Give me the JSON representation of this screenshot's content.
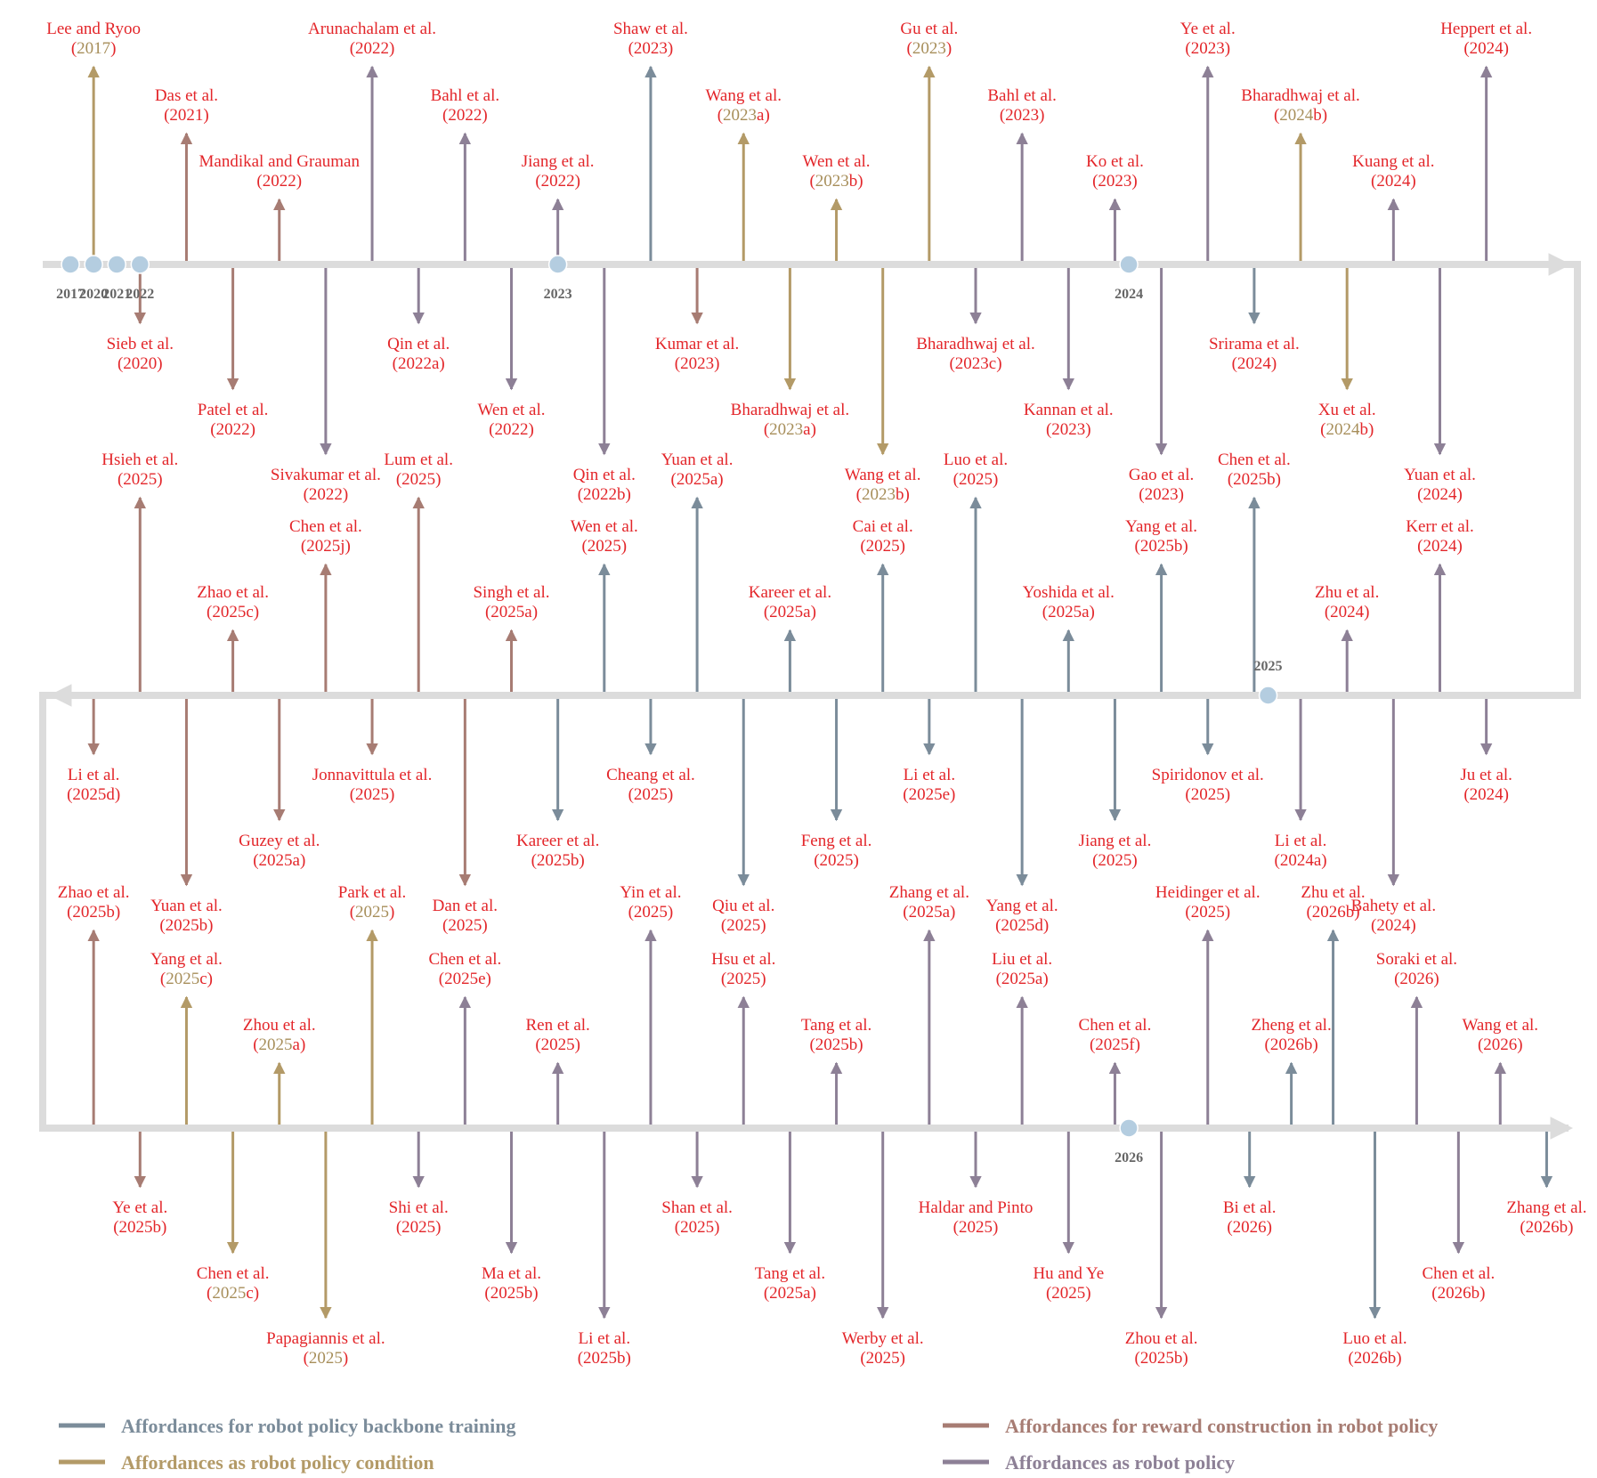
{
  "colors": {
    "track": "#dcdcdc",
    "marker": "#b4cde0",
    "text": "#e3262a",
    "year_letter_tan": "#a78e5a",
    "backbone": "#7b8c9a",
    "condition": "#b39a67",
    "reward": "#a77c73",
    "policy": "#8d8096"
  },
  "legend": [
    {
      "cat": "backbone",
      "label": "Affordances for robot policy backbone training"
    },
    {
      "cat": "reward",
      "label": "Affordances for reward construction in robot policy"
    },
    {
      "cat": "condition",
      "label": "Affordances as robot policy condition"
    },
    {
      "cat": "policy",
      "label": "Affordances as robot policy"
    }
  ],
  "year_markers": [
    {
      "label": "2017",
      "row": 0,
      "col": 0.5
    },
    {
      "label": "2020",
      "row": 0,
      "col": 1
    },
    {
      "label": "2021",
      "row": 0,
      "col": 1.5
    },
    {
      "label": "2022",
      "row": 0,
      "col": 2
    },
    {
      "label": "2023",
      "row": 0,
      "col": 11
    },
    {
      "label": "2024",
      "row": 0,
      "col": 23.3
    },
    {
      "label": "2025",
      "row": 1,
      "col": 26.3
    },
    {
      "label": "2026",
      "row": 2,
      "col": 23.3
    }
  ],
  "entries": [
    {
      "row": 0,
      "col": 1,
      "side": "up",
      "tier": 1,
      "cat": "condition",
      "author": "Lee and Ryoo",
      "year": "(2017)"
    },
    {
      "row": 0,
      "col": 2,
      "side": "down",
      "tier": 1,
      "cat": "reward",
      "author": "Sieb et al.",
      "year": "(2020)"
    },
    {
      "row": 0,
      "col": 3,
      "side": "up",
      "tier": 2,
      "cat": "reward",
      "author": "Das et al.",
      "year": "(2021)"
    },
    {
      "row": 0,
      "col": 4,
      "side": "down",
      "tier": 2,
      "cat": "reward",
      "author": "Patel et al.",
      "year": "(2022)"
    },
    {
      "row": 0,
      "col": 5,
      "side": "up",
      "tier": 3,
      "cat": "reward",
      "author": "Mandikal and Grauman",
      "year": "(2022)"
    },
    {
      "row": 0,
      "col": 6,
      "side": "down",
      "tier": 3,
      "cat": "policy",
      "author": "Sivakumar et al.",
      "year": "(2022)"
    },
    {
      "row": 0,
      "col": 7,
      "side": "up",
      "tier": 1,
      "cat": "policy",
      "author": "Arunachalam et al.",
      "year": "(2022)"
    },
    {
      "row": 0,
      "col": 8,
      "side": "down",
      "tier": 1,
      "cat": "policy",
      "author": "Qin et al.",
      "year": "(2022a)"
    },
    {
      "row": 0,
      "col": 9,
      "side": "up",
      "tier": 2,
      "cat": "policy",
      "author": "Bahl et al.",
      "year": "(2022)"
    },
    {
      "row": 0,
      "col": 10,
      "side": "down",
      "tier": 2,
      "cat": "policy",
      "author": "Wen et al.",
      "year": "(2022)"
    },
    {
      "row": 0,
      "col": 11,
      "side": "up",
      "tier": 3,
      "cat": "policy",
      "author": "Jiang et al.",
      "year": "(2022)"
    },
    {
      "row": 0,
      "col": 12,
      "side": "down",
      "tier": 3,
      "cat": "policy",
      "author": "Qin et al.",
      "year": "(2022b)"
    },
    {
      "row": 0,
      "col": 13,
      "side": "up",
      "tier": 1,
      "cat": "backbone",
      "author": "Shaw et al.",
      "year": "(2023)"
    },
    {
      "row": 0,
      "col": 14,
      "side": "down",
      "tier": 1,
      "cat": "reward",
      "author": "Kumar et al.",
      "year": "(2023)"
    },
    {
      "row": 0,
      "col": 15,
      "side": "up",
      "tier": 2,
      "cat": "condition",
      "author": "Wang et al.",
      "year": "(2023a)"
    },
    {
      "row": 0,
      "col": 16,
      "side": "down",
      "tier": 2,
      "cat": "condition",
      "author": "Bharadhwaj et al.",
      "year": "(2023a)"
    },
    {
      "row": 0,
      "col": 17,
      "side": "up",
      "tier": 3,
      "cat": "condition",
      "author": "Wen et al.",
      "year": "(2023b)"
    },
    {
      "row": 0,
      "col": 18,
      "side": "down",
      "tier": 3,
      "cat": "condition",
      "author": "Wang et al.",
      "year": "(2023b)"
    },
    {
      "row": 0,
      "col": 19,
      "side": "up",
      "tier": 1,
      "cat": "condition",
      "author": "Gu et al.",
      "year": "(2023)"
    },
    {
      "row": 0,
      "col": 20,
      "side": "down",
      "tier": 1,
      "cat": "policy",
      "author": "Bharadhwaj et al.",
      "year": "(2023c)"
    },
    {
      "row": 0,
      "col": 21,
      "side": "up",
      "tier": 2,
      "cat": "policy",
      "author": "Bahl et al.",
      "year": "(2023)"
    },
    {
      "row": 0,
      "col": 22,
      "side": "down",
      "tier": 2,
      "cat": "policy",
      "author": "Kannan et al.",
      "year": "(2023)"
    },
    {
      "row": 0,
      "col": 23,
      "side": "up",
      "tier": 3,
      "cat": "policy",
      "author": "Ko et al.",
      "year": "(2023)"
    },
    {
      "row": 0,
      "col": 24,
      "side": "down",
      "tier": 3,
      "cat": "policy",
      "author": "Gao et al.",
      "year": "(2023)"
    },
    {
      "row": 0,
      "col": 25,
      "side": "up",
      "tier": 1,
      "cat": "policy",
      "author": "Ye et al.",
      "year": "(2023)"
    },
    {
      "row": 0,
      "col": 26,
      "side": "down",
      "tier": 1,
      "cat": "backbone",
      "author": "Srirama et al.",
      "year": "(2024)"
    },
    {
      "row": 0,
      "col": 27,
      "side": "up",
      "tier": 2,
      "cat": "condition",
      "author": "Bharadhwaj et al.",
      "year": "(2024b)"
    },
    {
      "row": 0,
      "col": 28,
      "side": "down",
      "tier": 2,
      "cat": "condition",
      "author": "Xu et al.",
      "year": "(2024b)"
    },
    {
      "row": 0,
      "col": 29,
      "side": "up",
      "tier": 3,
      "cat": "policy",
      "author": "Kuang et al.",
      "year": "(2024)"
    },
    {
      "row": 0,
      "col": 30,
      "side": "down",
      "tier": 3,
      "cat": "policy",
      "author": "Yuan et al.",
      "year": "(2024)"
    },
    {
      "row": 0,
      "col": 31,
      "side": "up",
      "tier": 1,
      "cat": "policy",
      "author": "Heppert et al.",
      "year": "(2024)"
    },
    {
      "row": 1,
      "col": 31,
      "side": "down",
      "tier": 1,
      "cat": "policy",
      "author": "Ju et al.",
      "year": "(2024)"
    },
    {
      "row": 1,
      "col": 30,
      "side": "up",
      "tier": 2,
      "cat": "policy",
      "author": "Kerr et al.",
      "year": "(2024)"
    },
    {
      "row": 1,
      "col": 29,
      "side": "down",
      "tier": 3,
      "cat": "policy",
      "author": "Bahety et al.",
      "year": "(2024)"
    },
    {
      "row": 1,
      "col": 28,
      "side": "up",
      "tier": 3,
      "cat": "policy",
      "author": "Zhu et al.",
      "year": "(2024)"
    },
    {
      "row": 1,
      "col": 27,
      "side": "down",
      "tier": 2,
      "cat": "policy",
      "author": "Li et al.",
      "year": "(2024a)"
    },
    {
      "row": 1,
      "col": 26,
      "side": "up",
      "tier": 1,
      "cat": "backbone",
      "author": "Chen et al.",
      "year": "(2025b)"
    },
    {
      "row": 1,
      "col": 25,
      "side": "down",
      "tier": 1,
      "cat": "backbone",
      "author": "Spiridonov et al.",
      "year": "(2025)"
    },
    {
      "row": 1,
      "col": 24,
      "side": "up",
      "tier": 2,
      "cat": "backbone",
      "author": "Yang et al.",
      "year": "(2025b)"
    },
    {
      "row": 1,
      "col": 23,
      "side": "down",
      "tier": 2,
      "cat": "backbone",
      "author": "Jiang et al.",
      "year": "(2025)"
    },
    {
      "row": 1,
      "col": 22,
      "side": "up",
      "tier": 3,
      "cat": "backbone",
      "author": "Yoshida et al.",
      "year": "(2025a)"
    },
    {
      "row": 1,
      "col": 21,
      "side": "down",
      "tier": 3,
      "cat": "backbone",
      "author": "Yang et al.",
      "year": "(2025d)"
    },
    {
      "row": 1,
      "col": 20,
      "side": "up",
      "tier": 1,
      "cat": "backbone",
      "author": "Luo et al.",
      "year": "(2025)"
    },
    {
      "row": 1,
      "col": 19,
      "side": "down",
      "tier": 1,
      "cat": "backbone",
      "author": "Li et al.",
      "year": "(2025e)"
    },
    {
      "row": 1,
      "col": 18,
      "side": "up",
      "tier": 2,
      "cat": "backbone",
      "author": "Cai et al.",
      "year": "(2025)"
    },
    {
      "row": 1,
      "col": 17,
      "side": "down",
      "tier": 2,
      "cat": "backbone",
      "author": "Feng et al.",
      "year": "(2025)"
    },
    {
      "row": 1,
      "col": 16,
      "side": "up",
      "tier": 3,
      "cat": "backbone",
      "author": "Kareer et al.",
      "year": "(2025a)"
    },
    {
      "row": 1,
      "col": 15,
      "side": "down",
      "tier": 3,
      "cat": "backbone",
      "author": "Qiu et al.",
      "year": "(2025)"
    },
    {
      "row": 1,
      "col": 14,
      "side": "up",
      "tier": 1,
      "cat": "backbone",
      "author": "Yuan et al.",
      "year": "(2025a)"
    },
    {
      "row": 1,
      "col": 13,
      "side": "down",
      "tier": 1,
      "cat": "backbone",
      "author": "Cheang et al.",
      "year": "(2025)"
    },
    {
      "row": 1,
      "col": 12,
      "side": "up",
      "tier": 2,
      "cat": "backbone",
      "author": "Wen et al.",
      "year": "(2025)"
    },
    {
      "row": 1,
      "col": 11,
      "side": "down",
      "tier": 2,
      "cat": "backbone",
      "author": "Kareer et al.",
      "year": "(2025b)"
    },
    {
      "row": 1,
      "col": 10,
      "side": "up",
      "tier": 3,
      "cat": "reward",
      "author": "Singh et al.",
      "year": "(2025a)"
    },
    {
      "row": 1,
      "col": 9,
      "side": "down",
      "tier": 3,
      "cat": "reward",
      "author": "Dan et al.",
      "year": "(2025)"
    },
    {
      "row": 1,
      "col": 8,
      "side": "up",
      "tier": 1,
      "cat": "reward",
      "author": "Lum et al.",
      "year": "(2025)"
    },
    {
      "row": 1,
      "col": 7,
      "side": "down",
      "tier": 1,
      "cat": "reward",
      "author": "Jonnavittula et al.",
      "year": "(2025)"
    },
    {
      "row": 1,
      "col": 6,
      "side": "up",
      "tier": 2,
      "cat": "reward",
      "author": "Chen et al.",
      "year": "(2025j)"
    },
    {
      "row": 1,
      "col": 5,
      "side": "down",
      "tier": 2,
      "cat": "reward",
      "author": "Guzey et al.",
      "year": "(2025a)"
    },
    {
      "row": 1,
      "col": 4,
      "side": "up",
      "tier": 3,
      "cat": "reward",
      "author": "Zhao et al.",
      "year": "(2025c)"
    },
    {
      "row": 1,
      "col": 3,
      "side": "down",
      "tier": 3,
      "cat": "reward",
      "author": "Yuan et al.",
      "year": "(2025b)"
    },
    {
      "row": 1,
      "col": 2,
      "side": "up",
      "tier": 1,
      "cat": "reward",
      "author": "Hsieh et al.",
      "year": "(2025)"
    },
    {
      "row": 1,
      "col": 1,
      "side": "down",
      "tier": 1,
      "cat": "reward",
      "author": "Li et al.",
      "year": "(2025d)"
    },
    {
      "row": 2,
      "col": 1,
      "side": "up",
      "tier": 1,
      "cat": "reward",
      "author": "Zhao et al.",
      "year": "(2025b)"
    },
    {
      "row": 2,
      "col": 2,
      "side": "down",
      "tier": 1,
      "cat": "reward",
      "author": "Ye et al.",
      "year": "(2025b)"
    },
    {
      "row": 2,
      "col": 3,
      "side": "up",
      "tier": 2,
      "cat": "condition",
      "author": "Yang et al.",
      "year": "(2025c)"
    },
    {
      "row": 2,
      "col": 4,
      "side": "down",
      "tier": 2,
      "cat": "condition",
      "author": "Chen et al.",
      "year": "(2025c)"
    },
    {
      "row": 2,
      "col": 5,
      "side": "up",
      "tier": 3,
      "cat": "condition",
      "author": "Zhou et al.",
      "year": "(2025a)"
    },
    {
      "row": 2,
      "col": 6,
      "side": "down",
      "tier": 3,
      "cat": "condition",
      "author": "Papagiannis et al.",
      "year": "(2025)"
    },
    {
      "row": 2,
      "col": 7,
      "side": "up",
      "tier": 1,
      "cat": "condition",
      "author": "Park et al.",
      "year": "(2025)"
    },
    {
      "row": 2,
      "col": 8,
      "side": "down",
      "tier": 1,
      "cat": "policy",
      "author": "Shi et al.",
      "year": "(2025)"
    },
    {
      "row": 2,
      "col": 9,
      "side": "up",
      "tier": 2,
      "cat": "policy",
      "author": "Chen et al.",
      "year": "(2025e)"
    },
    {
      "row": 2,
      "col": 10,
      "side": "down",
      "tier": 2,
      "cat": "policy",
      "author": "Ma et al.",
      "year": "(2025b)"
    },
    {
      "row": 2,
      "col": 11,
      "side": "up",
      "tier": 3,
      "cat": "policy",
      "author": "Ren et al.",
      "year": "(2025)"
    },
    {
      "row": 2,
      "col": 12,
      "side": "down",
      "tier": 3,
      "cat": "policy",
      "author": "Li et al.",
      "year": "(2025b)"
    },
    {
      "row": 2,
      "col": 13,
      "side": "up",
      "tier": 1,
      "cat": "policy",
      "author": "Yin et al.",
      "year": "(2025)"
    },
    {
      "row": 2,
      "col": 14,
      "side": "down",
      "tier": 1,
      "cat": "policy",
      "author": "Shan et al.",
      "year": "(2025)"
    },
    {
      "row": 2,
      "col": 15,
      "side": "up",
      "tier": 2,
      "cat": "policy",
      "author": "Hsu et al.",
      "year": "(2025)"
    },
    {
      "row": 2,
      "col": 16,
      "side": "down",
      "tier": 2,
      "cat": "policy",
      "author": "Tang et al.",
      "year": "(2025a)"
    },
    {
      "row": 2,
      "col": 17,
      "side": "up",
      "tier": 3,
      "cat": "policy",
      "author": "Tang et al.",
      "year": "(2025b)"
    },
    {
      "row": 2,
      "col": 18,
      "side": "down",
      "tier": 3,
      "cat": "policy",
      "author": "Werby et al.",
      "year": "(2025)"
    },
    {
      "row": 2,
      "col": 19,
      "side": "up",
      "tier": 1,
      "cat": "policy",
      "author": "Zhang et al.",
      "year": "(2025a)"
    },
    {
      "row": 2,
      "col": 20,
      "side": "down",
      "tier": 1,
      "cat": "policy",
      "author": "Haldar and Pinto",
      "year": "(2025)"
    },
    {
      "row": 2,
      "col": 21,
      "side": "up",
      "tier": 2,
      "cat": "policy",
      "author": "Liu et al.",
      "year": "(2025a)"
    },
    {
      "row": 2,
      "col": 22,
      "side": "down",
      "tier": 2,
      "cat": "policy",
      "author": "Hu and Ye",
      "year": "(2025)"
    },
    {
      "row": 2,
      "col": 23,
      "side": "up",
      "tier": 3,
      "cat": "policy",
      "author": "Chen et al.",
      "year": "(2025f)"
    },
    {
      "row": 2,
      "col": 24,
      "side": "down",
      "tier": 3,
      "cat": "policy",
      "author": "Zhou et al.",
      "year": "(2025b)"
    },
    {
      "row": 2,
      "col": 25,
      "side": "up",
      "tier": 1,
      "cat": "policy",
      "author": "Heidinger et al.",
      "year": "(2025)"
    },
    {
      "row": 2,
      "col": 25.9,
      "side": "down",
      "tier": 1,
      "cat": "backbone",
      "author": "Bi et al.",
      "year": "(2026)"
    },
    {
      "row": 2,
      "col": 26.8,
      "side": "up",
      "tier": 3,
      "cat": "backbone",
      "author": "Zheng et al.",
      "year": "(2026b)"
    },
    {
      "row": 2,
      "col": 27.7,
      "side": "up",
      "tier": 1,
      "cat": "backbone",
      "author": "Zhu et al.",
      "year": "(2026b)"
    },
    {
      "row": 2,
      "col": 28.6,
      "side": "down",
      "tier": 3,
      "cat": "backbone",
      "author": "Luo et al.",
      "year": "(2026b)"
    },
    {
      "row": 2,
      "col": 29.5,
      "side": "up",
      "tier": 2,
      "cat": "policy",
      "author": "Soraki et al.",
      "year": "(2026)"
    },
    {
      "row": 2,
      "col": 30.4,
      "side": "down",
      "tier": 2,
      "cat": "policy",
      "author": "Chen et al.",
      "year": "(2026b)"
    },
    {
      "row": 2,
      "col": 31.3,
      "side": "up",
      "tier": 3,
      "cat": "policy",
      "author": "Wang et al.",
      "year": "(2026)"
    },
    {
      "row": 2,
      "col": 32.3,
      "side": "down",
      "tier": 1,
      "cat": "backbone",
      "author": "Zhang et al.",
      "year": "(2026b)"
    }
  ]
}
